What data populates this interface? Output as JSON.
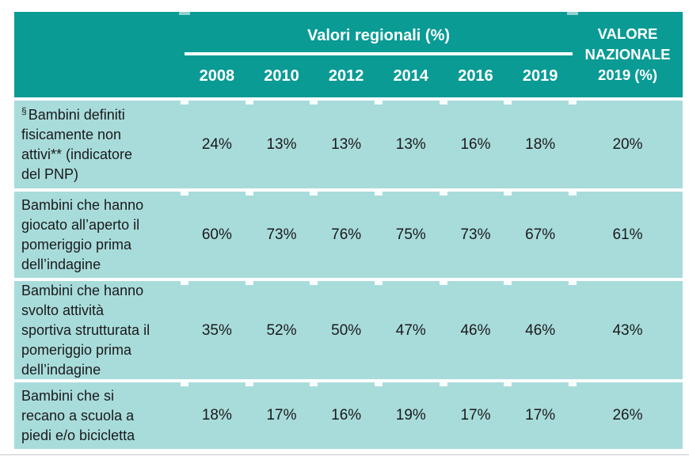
{
  "table": {
    "header": {
      "group_label": "Valori regionali (%)",
      "years": [
        "2008",
        "2010",
        "2012",
        "2014",
        "2016",
        "2019"
      ],
      "national_label_lines": [
        "VALORE",
        "NAZIONALE",
        "2019 (%)"
      ]
    },
    "rows": [
      {
        "sup": "§",
        "label": "Bambini definiti fisicamente non attivi** (indicatore del PNP)",
        "values": [
          "24%",
          "13%",
          "13%",
          "13%",
          "16%",
          "18%"
        ],
        "national": "20%"
      },
      {
        "label": "Bambini che hanno giocato all’aperto il pomeriggio prima dell’indagine",
        "values": [
          "60%",
          "73%",
          "76%",
          "75%",
          "73%",
          "67%"
        ],
        "national": "61%"
      },
      {
        "label": "Bambini che hanno svolto attività sportiva strutturata il pomeriggio prima dell’indagine",
        "values": [
          "35%",
          "52%",
          "50%",
          "47%",
          "46%",
          "46%"
        ],
        "national": "43%"
      },
      {
        "label": "Bambini che si recano a scuola a piedi e/o bicicletta",
        "values": [
          "18%",
          "17%",
          "16%",
          "19%",
          "17%",
          "17%"
        ],
        "national": "26%"
      }
    ],
    "colors": {
      "header_bg": "#0a9b95",
      "row_bg": "#a8dcdb",
      "header_text": "#ffffff",
      "body_text": "#1a1a1a"
    }
  }
}
